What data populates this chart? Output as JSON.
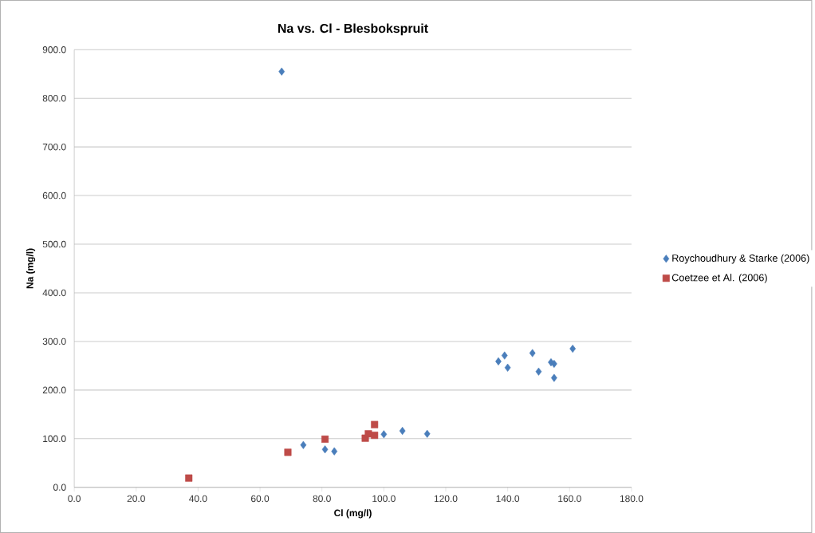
{
  "chart_data": {
    "type": "scatter",
    "title": "Na vs. Cl - Blesbokspruit",
    "xlabel": "Cl (mg/l)",
    "ylabel": "Na (mg/l)",
    "xlim": [
      0,
      180
    ],
    "ylim": [
      0,
      900
    ],
    "xticks": [
      {
        "value": 0,
        "label": "0.0"
      },
      {
        "value": 20,
        "label": "20.0"
      },
      {
        "value": 40,
        "label": "40.0"
      },
      {
        "value": 60,
        "label": "60.0"
      },
      {
        "value": 80,
        "label": "80.0"
      },
      {
        "value": 100,
        "label": "100.0"
      },
      {
        "value": 120,
        "label": "120.0"
      },
      {
        "value": 140,
        "label": "140.0"
      },
      {
        "value": 160,
        "label": "160.0"
      },
      {
        "value": 180,
        "label": "180.0"
      }
    ],
    "yticks": [
      {
        "value": 0,
        "label": "0.0"
      },
      {
        "value": 100,
        "label": "100.0"
      },
      {
        "value": 200,
        "label": "200.0"
      },
      {
        "value": 300,
        "label": "300.0"
      },
      {
        "value": 400,
        "label": "400.0"
      },
      {
        "value": 500,
        "label": "500.0"
      },
      {
        "value": 600,
        "label": "600.0"
      },
      {
        "value": 700,
        "label": "700.0"
      },
      {
        "value": 800,
        "label": "800.0"
      },
      {
        "value": 900,
        "label": "900.0"
      }
    ],
    "grid": "y",
    "legend": "right",
    "series": [
      {
        "name": "Roychoudhury & Starke (2006)",
        "color": "#4a7ebb",
        "marker": "diamond",
        "x": [
          67,
          74,
          81,
          84,
          100,
          106,
          114,
          137,
          139,
          140,
          148,
          150,
          154,
          155,
          155,
          161
        ],
        "values": [
          855,
          87,
          78,
          74,
          109,
          116,
          110,
          259,
          271,
          246,
          276,
          238,
          257,
          254,
          225,
          285
        ]
      },
      {
        "name": "Coetzee et Al. (2006)",
        "color": "#be4b48",
        "marker": "square",
        "x": [
          37,
          69,
          81,
          94,
          95,
          97,
          97
        ],
        "values": [
          19,
          72,
          99,
          101,
          110,
          129,
          107
        ]
      }
    ]
  }
}
